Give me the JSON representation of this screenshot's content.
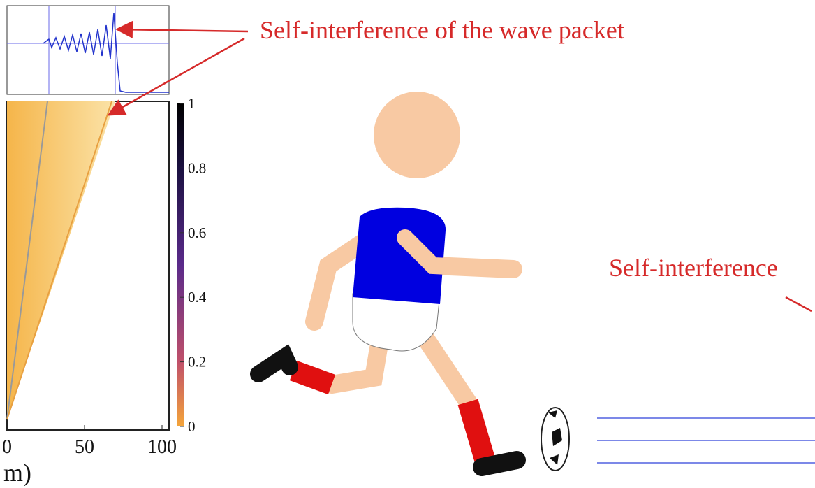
{
  "annotations": [
    "Self-interference of the wave packet",
    "Self-interference"
  ],
  "colorbar": {
    "ticks": [
      0,
      0.2,
      0.4,
      0.6,
      0.8,
      1
    ]
  },
  "x_axis": {
    "ticks": [
      0,
      50,
      100
    ],
    "label": "m)"
  }
}
